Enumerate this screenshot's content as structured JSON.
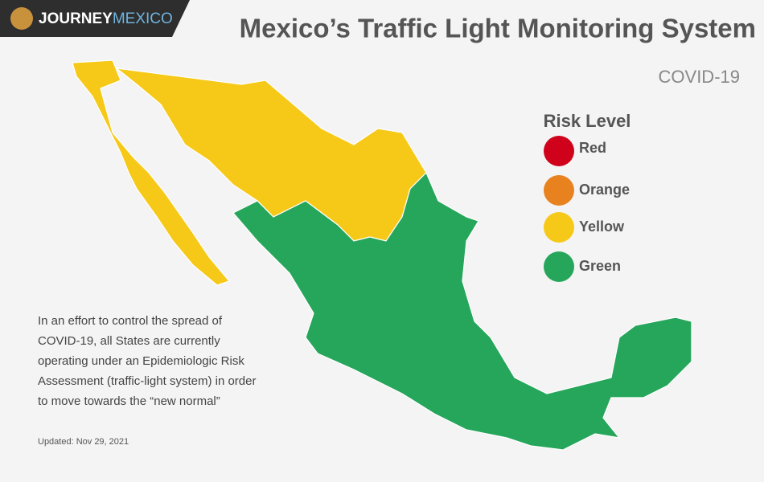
{
  "logo": {
    "brand_first": "JOURNEY",
    "brand_second": "MEXICO"
  },
  "header": {
    "title": "Mexico’s Traffic Light Monitoring System",
    "subtitle": "COVID-19"
  },
  "legend": {
    "title": "Risk Level",
    "items": [
      {
        "label": "Red",
        "color": "#d0021b"
      },
      {
        "label": "Orange",
        "color": "#e8821e"
      },
      {
        "label": "Yellow",
        "color": "#f6c918"
      },
      {
        "label": "Green",
        "color": "#26a65b"
      }
    ]
  },
  "note": {
    "lines": [
      "In an effort to control the spread of",
      "COVID-19, all States are currently",
      "operating under an Epidemiologic Risk",
      "Assessment (traffic-light system) in order",
      "to move towards the “new normal”"
    ]
  },
  "updated": "Updated: Nov 29, 2021"
}
